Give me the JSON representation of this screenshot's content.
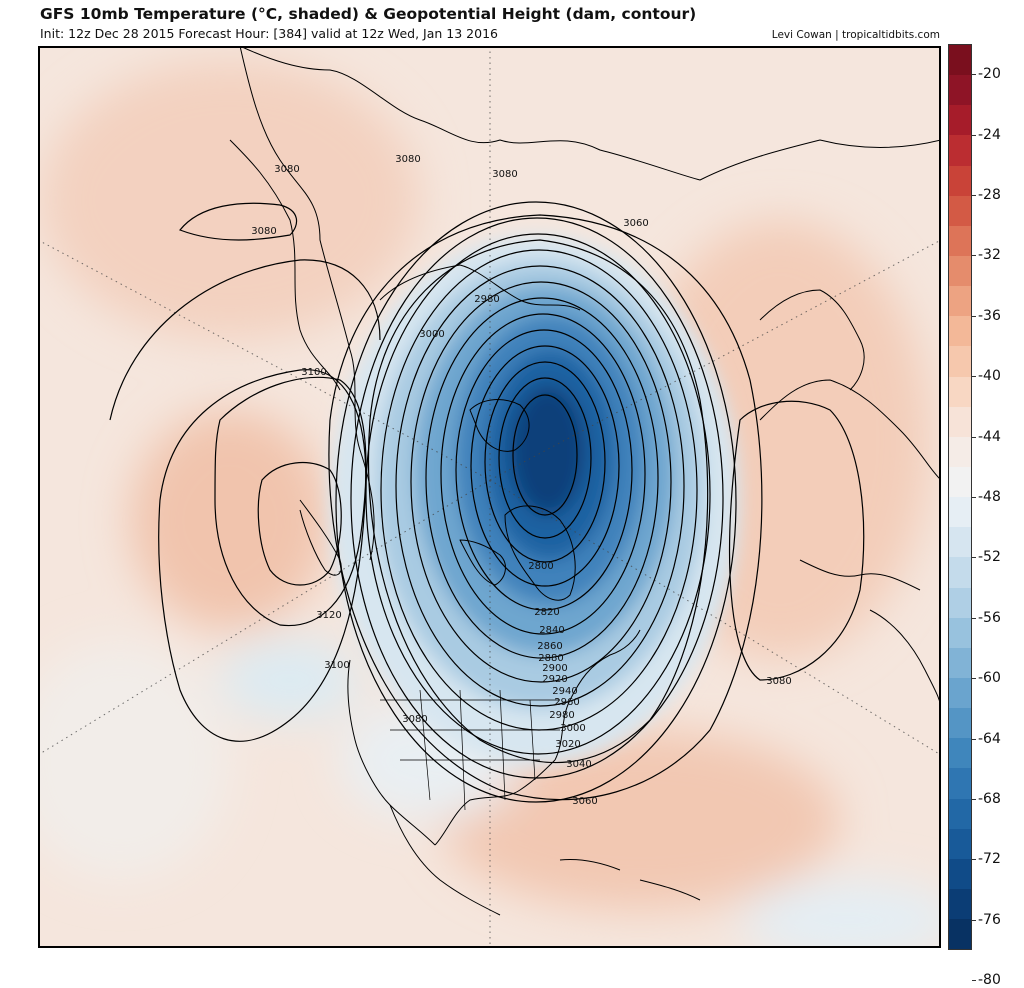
{
  "header": {
    "title": "GFS 10mb Temperature (°C, shaded) & Geopotential Height (dam, contour)",
    "subtitle": "Init: 12z Dec 28 2015   Forecast Hour: [384]   valid at 12z Wed, Jan 13 2016",
    "credit": "Levi Cowan | tropicaltidbits.com"
  },
  "colorbar": {
    "ticks": [
      "-20",
      "-24",
      "-28",
      "-32",
      "-36",
      "-40",
      "-44",
      "-48",
      "-52",
      "-56",
      "-60",
      "-64",
      "-68",
      "-72",
      "-76",
      "-80"
    ],
    "colors": [
      "#7a0f1e",
      "#8e1426",
      "#a61c2a",
      "#bb2d31",
      "#c94338",
      "#d35a45",
      "#dd7458",
      "#e58c6c",
      "#eda382",
      "#f3b898",
      "#f6c8ad",
      "#f8d7c3",
      "#f7e3d8",
      "#f5ece7",
      "#f2f2f2",
      "#e6eef4",
      "#d6e5f0",
      "#c4dbeb",
      "#afcfe5",
      "#98c2de",
      "#81b3d6",
      "#6aa4ce",
      "#5495c5",
      "#3f86bc",
      "#2f76b2",
      "#2268a6",
      "#185a99",
      "#104b88",
      "#0b3d75",
      "#083263"
    ]
  },
  "contour_labels": [
    "3080",
    "3080",
    "3080",
    "3060",
    "2980",
    "3000",
    "3100",
    "3080",
    "3120",
    "3100",
    "2800",
    "2820",
    "2840",
    "2860",
    "2880",
    "2900",
    "2920",
    "2940",
    "2960",
    "2980",
    "3000",
    "3020",
    "3040",
    "3060",
    "3080",
    "3080"
  ]
}
